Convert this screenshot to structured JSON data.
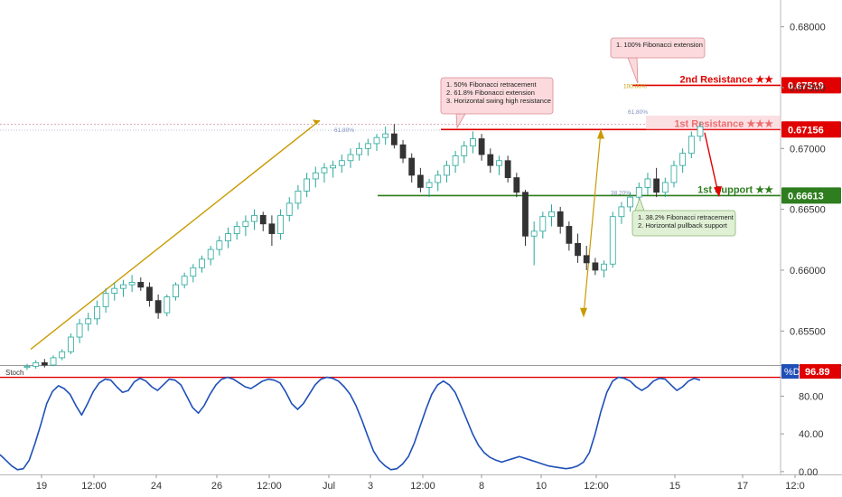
{
  "chart_data": [
    {
      "type": "candlestick",
      "pane": "price",
      "price_axis": {
        "ticks": [
          "0.68000",
          "0.67500",
          "0.67000",
          "0.66500",
          "0.66000",
          "0.65500"
        ],
        "ylim": [
          0.6522,
          0.6822
        ]
      },
      "time_axis": {
        "ticks": [
          "19",
          "12:00",
          "24",
          "26",
          "12:00",
          "Jul",
          "3",
          "12:00",
          "8",
          "10",
          "12:00",
          "15",
          "17",
          "12:0"
        ]
      },
      "candles_ohlc": [
        [
          0.652,
          0.6523,
          0.6518,
          0.6521
        ],
        [
          0.6521,
          0.6526,
          0.6519,
          0.6524
        ],
        [
          0.6524,
          0.6527,
          0.652,
          0.6522
        ],
        [
          0.6522,
          0.653,
          0.6521,
          0.6528
        ],
        [
          0.6528,
          0.6535,
          0.6526,
          0.6533
        ],
        [
          0.6533,
          0.6548,
          0.6531,
          0.6545
        ],
        [
          0.6545,
          0.656,
          0.654,
          0.6556
        ],
        [
          0.6556,
          0.6565,
          0.655,
          0.656
        ],
        [
          0.656,
          0.6575,
          0.6555,
          0.657
        ],
        [
          0.657,
          0.6585,
          0.6565,
          0.6581
        ],
        [
          0.6581,
          0.659,
          0.6575,
          0.6585
        ],
        [
          0.6585,
          0.6592,
          0.6578,
          0.6588
        ],
        [
          0.6588,
          0.6596,
          0.6582,
          0.659
        ],
        [
          0.659,
          0.6594,
          0.6583,
          0.6586
        ],
        [
          0.6586,
          0.659,
          0.657,
          0.6575
        ],
        [
          0.6575,
          0.658,
          0.656,
          0.6565
        ],
        [
          0.6565,
          0.658,
          0.6562,
          0.6578
        ],
        [
          0.6578,
          0.659,
          0.6575,
          0.6588
        ],
        [
          0.6588,
          0.6598,
          0.6585,
          0.6595
        ],
        [
          0.6595,
          0.6605,
          0.659,
          0.6602
        ],
        [
          0.6602,
          0.6612,
          0.6598,
          0.6609
        ],
        [
          0.6609,
          0.662,
          0.6604,
          0.6617
        ],
        [
          0.6617,
          0.6628,
          0.6612,
          0.6624
        ],
        [
          0.6624,
          0.6635,
          0.6618,
          0.663
        ],
        [
          0.663,
          0.664,
          0.6625,
          0.6636
        ],
        [
          0.6636,
          0.6645,
          0.6628,
          0.664
        ],
        [
          0.664,
          0.665,
          0.6633,
          0.6645
        ],
        [
          0.6645,
          0.6648,
          0.6632,
          0.6638
        ],
        [
          0.6638,
          0.6645,
          0.662,
          0.663
        ],
        [
          0.663,
          0.665,
          0.6625,
          0.6645
        ],
        [
          0.6645,
          0.666,
          0.664,
          0.6655
        ],
        [
          0.6655,
          0.667,
          0.665,
          0.6665
        ],
        [
          0.6665,
          0.668,
          0.666,
          0.6675
        ],
        [
          0.6675,
          0.6685,
          0.6668,
          0.668
        ],
        [
          0.668,
          0.6688,
          0.6672,
          0.6684
        ],
        [
          0.6684,
          0.669,
          0.6676,
          0.6686
        ],
        [
          0.6686,
          0.6695,
          0.668,
          0.669
        ],
        [
          0.669,
          0.67,
          0.6684,
          0.6695
        ],
        [
          0.6695,
          0.6705,
          0.669,
          0.67
        ],
        [
          0.67,
          0.6708,
          0.6694,
          0.6704
        ],
        [
          0.6704,
          0.6712,
          0.6698,
          0.6709
        ],
        [
          0.6709,
          0.6718,
          0.6703,
          0.6712
        ],
        [
          0.6712,
          0.672,
          0.67,
          0.6703
        ],
        [
          0.6703,
          0.6707,
          0.6688,
          0.6692
        ],
        [
          0.6692,
          0.6696,
          0.6672,
          0.6678
        ],
        [
          0.6678,
          0.6684,
          0.6664,
          0.6668
        ],
        [
          0.6668,
          0.6675,
          0.666,
          0.6672
        ],
        [
          0.6672,
          0.6682,
          0.6665,
          0.6678
        ],
        [
          0.6678,
          0.669,
          0.6672,
          0.6686
        ],
        [
          0.6686,
          0.6698,
          0.668,
          0.6694
        ],
        [
          0.6694,
          0.6706,
          0.6688,
          0.6702
        ],
        [
          0.6702,
          0.6714,
          0.6696,
          0.6708
        ],
        [
          0.6708,
          0.6712,
          0.669,
          0.6695
        ],
        [
          0.6695,
          0.67,
          0.668,
          0.6686
        ],
        [
          0.6686,
          0.6694,
          0.6678,
          0.669
        ],
        [
          0.669,
          0.6694,
          0.6672,
          0.6676
        ],
        [
          0.6676,
          0.668,
          0.666,
          0.6664
        ],
        [
          0.6664,
          0.6666,
          0.662,
          0.6628
        ],
        [
          0.6628,
          0.664,
          0.6604,
          0.6632
        ],
        [
          0.6632,
          0.6648,
          0.6626,
          0.6644
        ],
        [
          0.6644,
          0.6654,
          0.6636,
          0.6648
        ],
        [
          0.6648,
          0.6652,
          0.663,
          0.6636
        ],
        [
          0.6636,
          0.664,
          0.6616,
          0.6622
        ],
        [
          0.6622,
          0.663,
          0.6606,
          0.6612
        ],
        [
          0.6612,
          0.662,
          0.66,
          0.6606
        ],
        [
          0.6606,
          0.661,
          0.6596,
          0.66
        ],
        [
          0.66,
          0.6608,
          0.6594,
          0.6605
        ],
        [
          0.6605,
          0.6648,
          0.6602,
          0.6644
        ],
        [
          0.6644,
          0.6656,
          0.6638,
          0.6652
        ],
        [
          0.6652,
          0.6664,
          0.6648,
          0.666
        ],
        [
          0.666,
          0.6672,
          0.6654,
          0.6668
        ],
        [
          0.6668,
          0.668,
          0.6662,
          0.6675
        ],
        [
          0.6675,
          0.6684,
          0.666,
          0.6664
        ],
        [
          0.6664,
          0.6676,
          0.666,
          0.6672
        ],
        [
          0.6672,
          0.669,
          0.6668,
          0.6686
        ],
        [
          0.6686,
          0.67,
          0.668,
          0.6696
        ],
        [
          0.6696,
          0.6714,
          0.6692,
          0.671
        ],
        [
          0.671,
          0.6722,
          0.6706,
          0.6718
        ]
      ],
      "levels": [
        {
          "label": "2nd Resistance ★★",
          "value": 0.67519,
          "tag": "0.67519",
          "color": "#e00000"
        },
        {
          "label": "1st Resistance ★★★",
          "value": 0.67156,
          "tag": "0.67156",
          "color": "#e00000"
        },
        {
          "label": "1st Support ★★",
          "value": 0.66613,
          "tag": "0.66613",
          "color": "#2e7d1e"
        }
      ],
      "fib_labels": {
        "ext_100": "100.00%",
        "ext_618": "61.80%",
        "ret_618": "61.80%",
        "ret_382": "38.20%"
      },
      "annotations": [
        {
          "lines": [
            "1. 100% Fibonacci extension"
          ],
          "theme": "red"
        },
        {
          "lines": [
            "1. 50% Fibonacci retracement",
            "2. 61.8% Fibonacci extension",
            "3. Horizontal swing high resistance"
          ],
          "theme": "red"
        },
        {
          "lines": [
            "1. 38.2% Fibonacci retracement",
            "2. Horizontal pullback support"
          ],
          "theme": "green"
        }
      ],
      "colors": {
        "up": "#26a69a",
        "down": "#333333",
        "resistance": "#e00000",
        "support": "#2e7d1e",
        "trendline": "#c99a00",
        "projection": "#e00000"
      }
    },
    {
      "type": "line",
      "pane": "oscillator",
      "title": "Stoch",
      "series": [
        {
          "name": "%D",
          "color": "#1e4fb8"
        }
      ],
      "y_ticks": [
        "80.00",
        "40.00",
        "0.00"
      ],
      "ylim": [
        -3,
        112
      ],
      "last_value": "96.89",
      "overbought_level": 100,
      "values": [
        18,
        12,
        6,
        2,
        3,
        12,
        30,
        50,
        72,
        85,
        91,
        88,
        82,
        70,
        60,
        72,
        85,
        94,
        98,
        97,
        90,
        84,
        86,
        95,
        99,
        96,
        90,
        86,
        92,
        98,
        97,
        92,
        80,
        68,
        62,
        70,
        82,
        92,
        98,
        100,
        98,
        94,
        90,
        88,
        92,
        96,
        98,
        97,
        94,
        84,
        72,
        66,
        72,
        82,
        92,
        98,
        100,
        99,
        96,
        90,
        82,
        70,
        55,
        38,
        22,
        12,
        6,
        2,
        3,
        8,
        16,
        30,
        48,
        66,
        82,
        92,
        96,
        92,
        84,
        70,
        55,
        40,
        28,
        20,
        15,
        12,
        10,
        12,
        14,
        16,
        14,
        12,
        10,
        8,
        6,
        5,
        4,
        3,
        4,
        6,
        10,
        20,
        40,
        64,
        84,
        96,
        100,
        99,
        96,
        90,
        86,
        90,
        96,
        99,
        98,
        92,
        86,
        90,
        96,
        99,
        97
      ]
    }
  ]
}
